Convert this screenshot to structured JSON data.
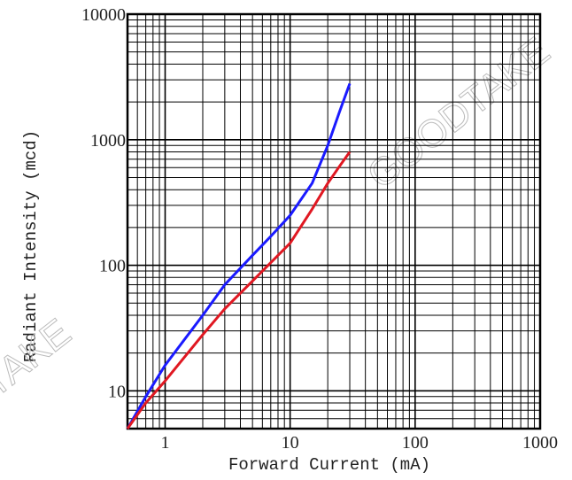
{
  "chart_data": {
    "type": "line",
    "x_label": "Forward Current (mA)",
    "y_label": "Radiant Intensity (mcd)",
    "watermarks": [
      "GOODTAKE",
      "TAKE"
    ],
    "log_x": true,
    "log_y": true,
    "grid": true,
    "xlim": [
      0.5,
      1000
    ],
    "ylim": [
      5,
      10000
    ],
    "xticks": [
      1,
      10,
      100,
      1000
    ],
    "yticks": [
      10,
      100,
      1000,
      10000
    ],
    "xminor": [
      0.6,
      0.7,
      0.8,
      0.9,
      2,
      3,
      4,
      5,
      6,
      7,
      8,
      9,
      20,
      30,
      40,
      50,
      60,
      70,
      80,
      90,
      200,
      300,
      400,
      500,
      600,
      700,
      800,
      900
    ],
    "yminor": [
      6,
      7,
      8,
      9,
      20,
      30,
      40,
      50,
      60,
      70,
      80,
      90,
      200,
      300,
      400,
      500,
      600,
      700,
      800,
      900,
      2000,
      3000,
      4000,
      5000,
      6000,
      7000,
      8000,
      9000
    ],
    "series": [
      {
        "color": "#1a1aff",
        "x": [
          0.5,
          0.7,
          1,
          2,
          3,
          5,
          7,
          10,
          15,
          20,
          25,
          30
        ],
        "values": [
          5,
          9,
          16,
          40,
          70,
          120,
          170,
          250,
          450,
          900,
          1700,
          2800
        ]
      },
      {
        "color": "#e01822",
        "x": [
          0.5,
          0.7,
          1,
          2,
          3,
          5,
          7,
          10,
          15,
          20,
          25,
          30
        ],
        "values": [
          5,
          8,
          12,
          28,
          45,
          75,
          105,
          150,
          280,
          450,
          620,
          800
        ]
      }
    ]
  }
}
